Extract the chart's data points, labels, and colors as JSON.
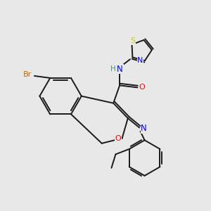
{
  "bg_color": "#e8e8e8",
  "bond_color": "#1a1a1a",
  "atom_colors": {
    "Br": "#cc6600",
    "O": "#ff0000",
    "N": "#0000ff",
    "NH": "#4a9090",
    "S": "#cccc00",
    "C": "#1a1a1a"
  },
  "figsize": [
    3.0,
    3.0
  ],
  "dpi": 100
}
